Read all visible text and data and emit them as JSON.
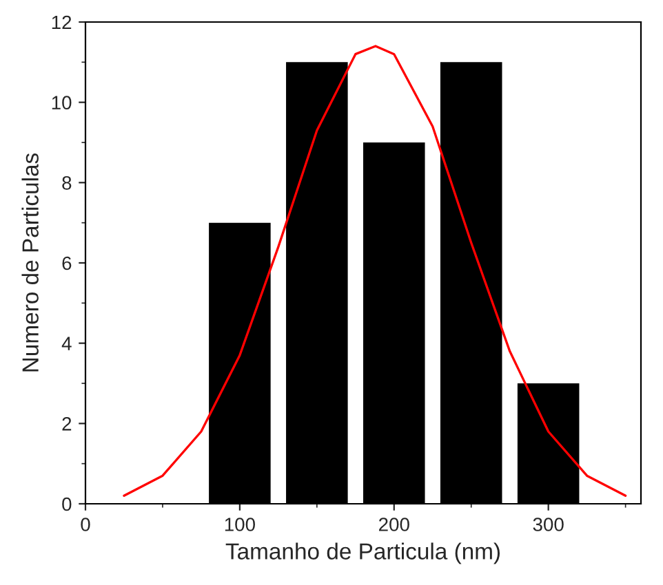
{
  "chart_data": {
    "type": "bar",
    "xlabel": "Tamanho de Particula (nm)",
    "ylabel": "Numero de Particulas",
    "xlim": [
      0,
      360
    ],
    "xticks": [
      0,
      100,
      200,
      300
    ],
    "ylim": [
      0,
      12
    ],
    "yticks": [
      0,
      2,
      4,
      6,
      8,
      10,
      12
    ],
    "grid": false,
    "legend": false,
    "series": [
      {
        "color": "#000000",
        "x": [
          100,
          150,
          200,
          250,
          300
        ],
        "values": [
          7,
          11,
          9,
          11,
          3
        ]
      },
      {
        "type": "line",
        "color": "#ff0000",
        "line_style": "solid",
        "marker": "none",
        "x": [
          25,
          50,
          75,
          100,
          125,
          150,
          175,
          188,
          200,
          225,
          250,
          275,
          300,
          325,
          350
        ],
        "values": [
          0.2,
          0.7,
          1.8,
          3.7,
          6.4,
          9.3,
          11.2,
          11.4,
          11.2,
          9.4,
          6.5,
          3.8,
          1.8,
          0.7,
          0.2
        ]
      }
    ]
  }
}
